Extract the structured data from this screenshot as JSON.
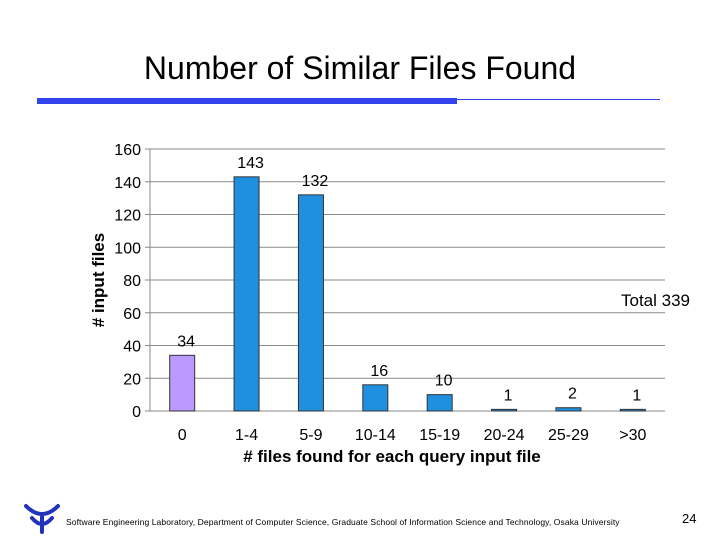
{
  "slide": {
    "title": "Number of Similar Files Found",
    "footer": "Software Engineering Laboratory, Department of Computer Science, Graduate School of Information Science and Technology, Osaka University",
    "page_number": "24",
    "accent_color": "#3344ee"
  },
  "chart_data": {
    "type": "bar",
    "categories": [
      "0",
      "1-4",
      "5-9",
      "10-14",
      "15-19",
      "20-24",
      "25-29",
      ">30"
    ],
    "values": [
      34,
      143,
      132,
      16,
      10,
      1,
      2,
      1
    ],
    "data_labels": [
      "34",
      "143",
      "132",
      "16",
      "10",
      "1",
      "2",
      "1"
    ],
    "bar_colors": [
      "#bb99ff",
      "#1f8fe0",
      "#1f8fe0",
      "#1f8fe0",
      "#1f8fe0",
      "#1f8fe0",
      "#1f8fe0",
      "#1f8fe0"
    ],
    "ylabel": "# input files",
    "xlabel": "# files found for each query input file",
    "ylim": [
      0,
      160
    ],
    "yticks": [
      0,
      20,
      40,
      60,
      80,
      100,
      120,
      140,
      160
    ],
    "grid": true,
    "annotation": "Total 339"
  }
}
